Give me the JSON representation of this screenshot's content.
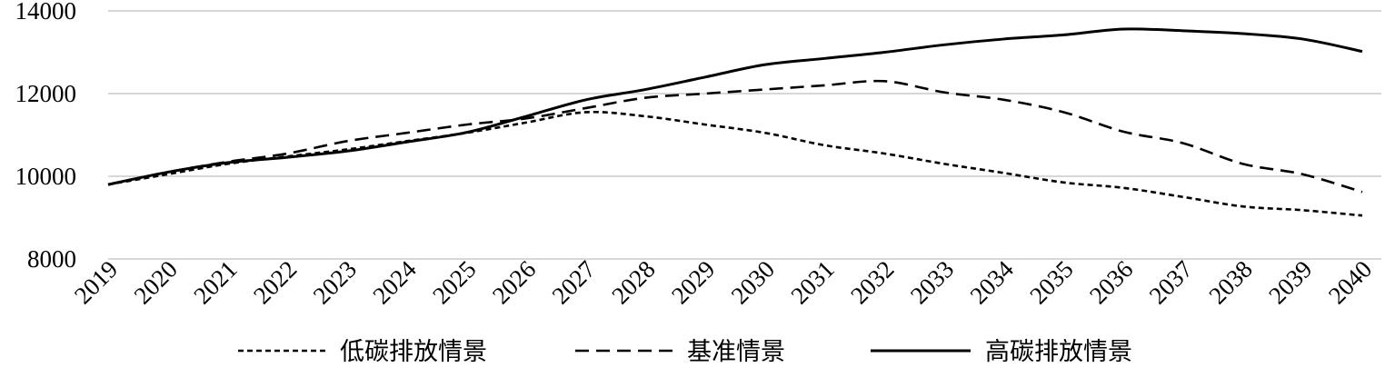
{
  "chart_data": {
    "type": "line",
    "title": "",
    "xlabel": "",
    "ylabel": "",
    "x": [
      "2019",
      "2020",
      "2021",
      "2022",
      "2023",
      "2024",
      "2025",
      "2026",
      "2027",
      "2028",
      "2029",
      "2030",
      "2031",
      "2032",
      "2033",
      "2034",
      "2035",
      "2036",
      "2037",
      "2038",
      "2039",
      "2040"
    ],
    "ylim": [
      8000,
      14000
    ],
    "yticks": [
      "8000",
      "10000",
      "12000",
      "14000"
    ],
    "grid": "horizontal",
    "legend_position": "bottom",
    "series": [
      {
        "name": "低碳排放情景",
        "style": "dotted",
        "color": "#000000",
        "values": [
          9800,
          10050,
          10300,
          10480,
          10650,
          10850,
          11050,
          11300,
          11550,
          11450,
          11250,
          11050,
          10750,
          10550,
          10300,
          10080,
          9850,
          9720,
          9500,
          9270,
          9180,
          9050
        ]
      },
      {
        "name": "基准情景",
        "style": "dashed",
        "color": "#000000",
        "values": [
          9800,
          10100,
          10350,
          10550,
          10850,
          11050,
          11250,
          11400,
          11650,
          11900,
          12000,
          12100,
          12200,
          12300,
          12030,
          11850,
          11550,
          11080,
          10800,
          10300,
          10050,
          9620
        ]
      },
      {
        "name": "高碳排放情景",
        "style": "solid",
        "color": "#000000",
        "values": [
          9800,
          10100,
          10330,
          10460,
          10610,
          10830,
          11060,
          11450,
          11850,
          12100,
          12400,
          12700,
          12850,
          13000,
          13180,
          13320,
          13420,
          13560,
          13520,
          13450,
          13320,
          13020
        ]
      }
    ]
  }
}
